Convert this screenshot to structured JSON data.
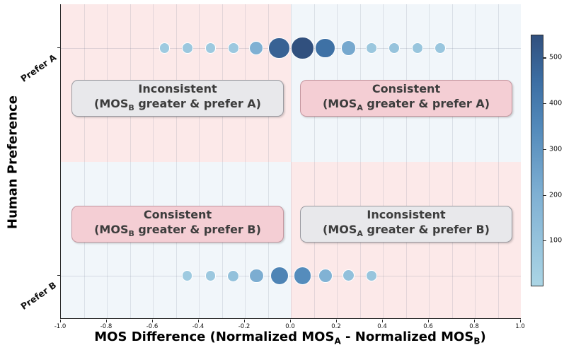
{
  "figure": {
    "xaxis": {
      "title_pre": "MOS Difference (Normalized MOS",
      "title_sub_a": "A",
      "title_mid": " - Normalized MOS",
      "title_sub_b": "B",
      "title_post": ")",
      "tick_labels": [
        "-1.0",
        "-0.8",
        "-0.6",
        "-0.4",
        "-0.2",
        "0.0",
        "0.2",
        "0.4",
        "0.6",
        "0.8",
        "1.0"
      ]
    },
    "yaxis": {
      "title": "Human Preference",
      "tick_labels": [
        "Prefer A",
        "Prefer B"
      ]
    }
  },
  "annotations": [
    {
      "quadrant": "top-left",
      "style": "gray",
      "line1": "Inconsistent",
      "line2_pre": "(MOS",
      "line2_sub": "B",
      "line2_post": " greater & prefer A)"
    },
    {
      "quadrant": "top-right",
      "style": "pink",
      "line1": "Consistent",
      "line2_pre": "(MOS",
      "line2_sub": "A",
      "line2_post": " greater & prefer A)"
    },
    {
      "quadrant": "bottom-left",
      "style": "pink",
      "line1": "Consistent",
      "line2_pre": "(MOS",
      "line2_sub": "B",
      "line2_post": " greater & prefer B)"
    },
    {
      "quadrant": "bottom-right",
      "style": "gray",
      "line1": "Inconsistent",
      "line2_pre": "(MOS",
      "line2_sub": "A",
      "line2_post": " greater & prefer B)"
    }
  ],
  "chart_data": {
    "type": "scatter",
    "subtype": "bubble-count",
    "title": "",
    "xlabel": "MOS Difference (Normalized MOS_A - Normalized MOS_B)",
    "ylabel": "Human Preference",
    "xlim": [
      -1.0,
      1.0
    ],
    "x_tick_step": 0.2,
    "x_grid_step": 0.1,
    "grid": true,
    "y_categories": [
      "Prefer B",
      "Prefer A"
    ],
    "quadrant_backgrounds": {
      "top_left": {
        "label": "MOS_B greater & prefer A",
        "consistency": "Inconsistent",
        "color": "#fce9e9"
      },
      "top_right": {
        "label": "MOS_A greater & prefer A",
        "consistency": "Consistent",
        "color": "#f1f6fa"
      },
      "bottom_left": {
        "label": "MOS_B greater & prefer B",
        "consistency": "Consistent",
        "color": "#f1f6fa"
      },
      "bottom_right": {
        "label": "MOS_A greater & prefer B",
        "consistency": "Inconsistent",
        "color": "#fce9e9"
      }
    },
    "colorbar": {
      "min": 0,
      "max": 550,
      "ticks": [
        100,
        200,
        300,
        400,
        500
      ],
      "gradient_stops": [
        [
          0,
          "#abd5e5"
        ],
        [
          200,
          "#7fb0d3"
        ],
        [
          350,
          "#5289ba"
        ],
        [
          450,
          "#3c6ea3"
        ],
        [
          550,
          "#31507e"
        ]
      ]
    },
    "series": [
      {
        "name": "Prefer A",
        "points": [
          {
            "x": -0.55,
            "count": 60
          },
          {
            "x": -0.45,
            "count": 75
          },
          {
            "x": -0.35,
            "count": 65
          },
          {
            "x": -0.25,
            "count": 70
          },
          {
            "x": -0.15,
            "count": 200
          },
          {
            "x": -0.05,
            "count": 490
          },
          {
            "x": 0.05,
            "count": 550
          },
          {
            "x": 0.15,
            "count": 440
          },
          {
            "x": 0.25,
            "count": 230
          },
          {
            "x": 0.35,
            "count": 75
          },
          {
            "x": 0.45,
            "count": 95
          },
          {
            "x": 0.55,
            "count": 85
          },
          {
            "x": 0.65,
            "count": 80
          }
        ]
      },
      {
        "name": "Prefer B",
        "points": [
          {
            "x": -0.45,
            "count": 60
          },
          {
            "x": -0.35,
            "count": 70
          },
          {
            "x": -0.25,
            "count": 110
          },
          {
            "x": -0.15,
            "count": 210
          },
          {
            "x": -0.05,
            "count": 370
          },
          {
            "x": 0.05,
            "count": 340
          },
          {
            "x": 0.15,
            "count": 190
          },
          {
            "x": 0.25,
            "count": 115
          },
          {
            "x": 0.35,
            "count": 85
          }
        ]
      }
    ]
  }
}
